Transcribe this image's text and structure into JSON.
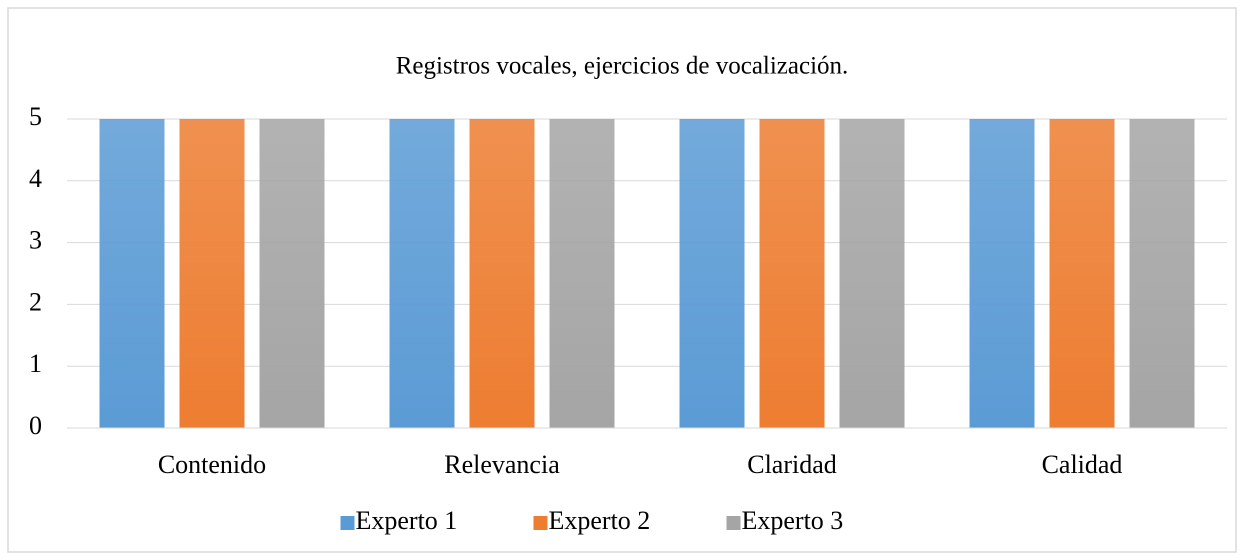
{
  "chart_data": {
    "type": "bar",
    "title": "Registros vocales, ejercicios de vocalización.",
    "categories": [
      "Contenido",
      "Relevancia",
      "Claridad",
      "Calidad"
    ],
    "series": [
      {
        "name": "Experto 1",
        "color": "#5b9bd5",
        "values": [
          5,
          5,
          5,
          5
        ]
      },
      {
        "name": "Experto 2",
        "color": "#ed7d31",
        "values": [
          5,
          5,
          5,
          5
        ]
      },
      {
        "name": "Experto 3",
        "color": "#a5a5a5",
        "values": [
          5,
          5,
          5,
          5
        ]
      }
    ],
    "ylim": [
      0,
      5
    ],
    "yticks": [
      0,
      1,
      2,
      3,
      4,
      5
    ],
    "grid": true,
    "legend": "bottom"
  }
}
